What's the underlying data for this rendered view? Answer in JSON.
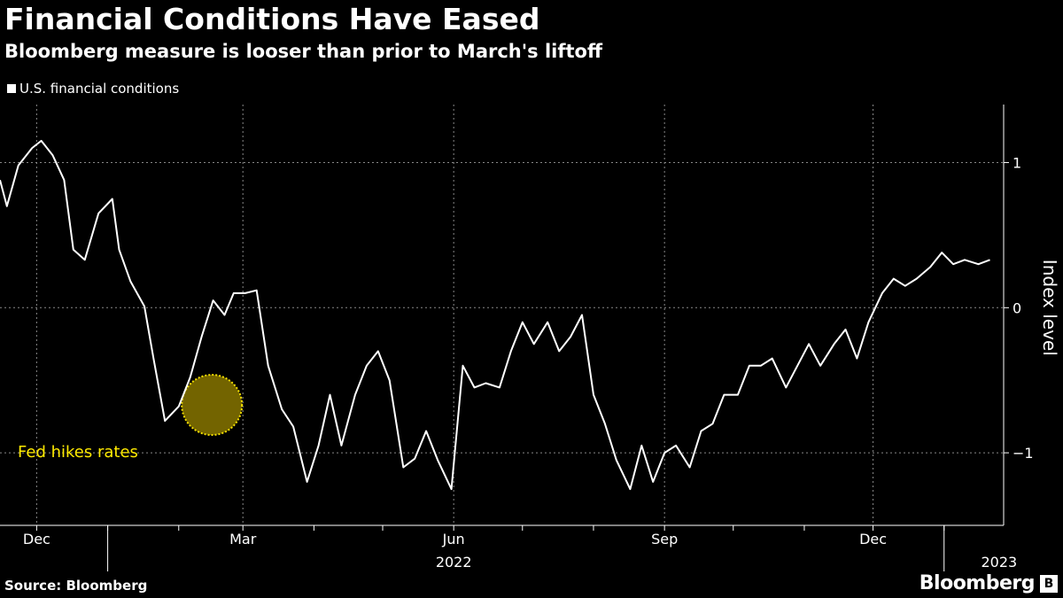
{
  "header": {
    "title": "Financial Conditions Have Eased",
    "subtitle": "Bloomberg measure is looser than prior to March's liftoff"
  },
  "footer": {
    "source": "Source: Bloomberg",
    "brand": "Bloomberg",
    "brand_icon": "B"
  },
  "colors": {
    "line": "#ffffff",
    "annotation": "#ffea00",
    "grid": "#888888",
    "background": "#000000"
  },
  "chart_data": {
    "type": "line",
    "series": [
      {
        "name": "U.S. financial conditions",
        "x": [
          "2021-11-15",
          "2021-11-18",
          "2021-11-23",
          "2021-11-29",
          "2021-12-03",
          "2021-12-08",
          "2021-12-13",
          "2021-12-17",
          "2021-12-22",
          "2021-12-28",
          "2022-01-03",
          "2022-01-06",
          "2022-01-11",
          "2022-01-17",
          "2022-01-21",
          "2022-01-26",
          "2022-02-01",
          "2022-02-06",
          "2022-02-11",
          "2022-02-16",
          "2022-02-21",
          "2022-02-25",
          "2022-03-02",
          "2022-03-07",
          "2022-03-12",
          "2022-03-18",
          "2022-03-23",
          "2022-03-29",
          "2022-04-03",
          "2022-04-08",
          "2022-04-13",
          "2022-04-19",
          "2022-04-24",
          "2022-04-29",
          "2022-05-04",
          "2022-05-10",
          "2022-05-15",
          "2022-05-20",
          "2022-05-25",
          "2022-05-31",
          "2022-06-05",
          "2022-06-10",
          "2022-06-15",
          "2022-06-21",
          "2022-06-26",
          "2022-07-01",
          "2022-07-06",
          "2022-07-12",
          "2022-07-17",
          "2022-07-22",
          "2022-07-27",
          "2022-08-01",
          "2022-08-06",
          "2022-08-11",
          "2022-08-17",
          "2022-08-22",
          "2022-08-27",
          "2022-09-01",
          "2022-09-06",
          "2022-09-12",
          "2022-09-17",
          "2022-09-22",
          "2022-09-27",
          "2022-10-03",
          "2022-10-08",
          "2022-10-13",
          "2022-10-18",
          "2022-10-24",
          "2022-10-29",
          "2022-11-03",
          "2022-11-08",
          "2022-11-14",
          "2022-11-19",
          "2022-11-24",
          "2022-11-29",
          "2022-12-05",
          "2022-12-10",
          "2022-12-15",
          "2022-12-20",
          "2022-12-26",
          "2022-12-31",
          "2023-01-05",
          "2023-01-10",
          "2023-01-16",
          "2023-01-21"
        ],
        "values": [
          0.88,
          0.7,
          0.98,
          1.1,
          1.15,
          1.05,
          0.88,
          0.4,
          0.33,
          0.65,
          0.75,
          0.4,
          0.18,
          0.01,
          -0.35,
          -0.78,
          -0.68,
          -0.48,
          -0.2,
          0.05,
          -0.05,
          0.1,
          0.1,
          0.12,
          -0.4,
          -0.7,
          -0.82,
          -1.2,
          -0.95,
          -0.6,
          -0.95,
          -0.6,
          -0.4,
          -0.3,
          -0.5,
          -1.1,
          -1.04,
          -0.85,
          -1.05,
          -1.25,
          -0.4,
          -0.55,
          -0.52,
          -0.55,
          -0.3,
          -0.1,
          -0.25,
          -0.1,
          -0.3,
          -0.2,
          -0.05,
          -0.6,
          -0.8,
          -1.05,
          -1.25,
          -0.95,
          -1.2,
          -1.0,
          -0.95,
          -1.1,
          -0.85,
          -0.8,
          -0.6,
          -0.6,
          -0.4,
          -0.4,
          -0.35,
          -0.55,
          -0.4,
          -0.25,
          -0.4,
          -0.25,
          -0.15,
          -0.35,
          -0.1,
          0.1,
          0.2,
          0.15,
          0.2,
          0.28,
          0.38,
          0.3,
          0.33,
          0.3,
          0.33
        ]
      }
    ],
    "xlabel": "",
    "ylabel": "Index level",
    "ylim": [
      -1.5,
      1.4
    ],
    "yticks": [
      -1,
      0,
      1
    ],
    "ytick_labels": [
      "−1",
      "0",
      "1"
    ],
    "xticks": [
      {
        "date": "2021-12-01",
        "label": "Dec"
      },
      {
        "date": "2022-03-01",
        "label": "Mar"
      },
      {
        "date": "2022-06-01",
        "label": "Jun"
      },
      {
        "date": "2022-09-01",
        "label": "Sep"
      },
      {
        "date": "2022-12-01",
        "label": "Dec"
      }
    ],
    "year_labels": [
      {
        "date": "2022-06-01",
        "label": "2022"
      },
      {
        "date": "2023-01-25",
        "label": "2023"
      }
    ],
    "annotation": {
      "date": "2022-03-01",
      "value": -0.67,
      "label": "Fed hikes rates"
    },
    "grid": true,
    "legend": "top-left"
  }
}
